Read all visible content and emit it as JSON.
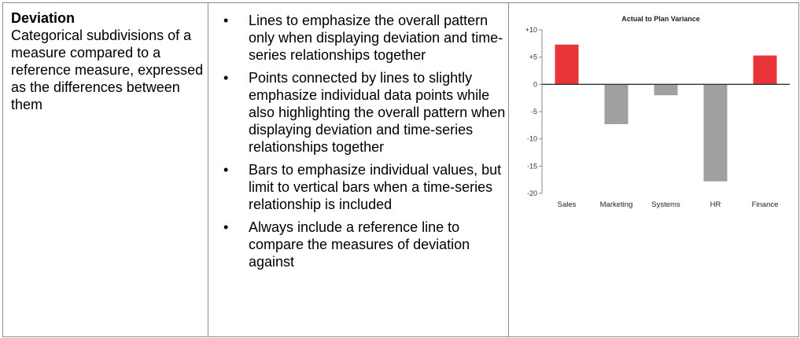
{
  "col1": {
    "term": "Deviation",
    "definition": "Categorical subdivisions of a measure compared to a reference measure, expressed as the differences between them"
  },
  "col2": {
    "bullets": [
      "Lines to emphasize the overall pattern only when displaying deviation and time-series relationships together",
      "Points connected by lines to slightly emphasize individual data points while also highlighting the overall pattern when displaying deviation and time-series relationships together",
      "Bars to emphasize individual values, but limit to vertical bars when a time-series relationship is included",
      "Always include a reference line to compare the measures of deviation against"
    ]
  },
  "chart_data": {
    "type": "bar",
    "title": "Actual to Plan Variance",
    "categories": [
      "Sales",
      "Marketing",
      "Systems",
      "HR",
      "Finance"
    ],
    "values": [
      7.3,
      -7.3,
      -2.0,
      -17.8,
      5.3
    ],
    "ylim": [
      -20,
      10
    ],
    "yticks": [
      10,
      5,
      0,
      -5,
      -10,
      -15,
      -20
    ],
    "ytick_labels": [
      "+10",
      "+5",
      "0",
      "-5",
      "-10",
      "-15",
      "-20"
    ],
    "colors": {
      "positive": "#e8353a",
      "negative": "#a0a0a0",
      "reference": "#333333"
    },
    "grid": false,
    "legend": "none"
  }
}
